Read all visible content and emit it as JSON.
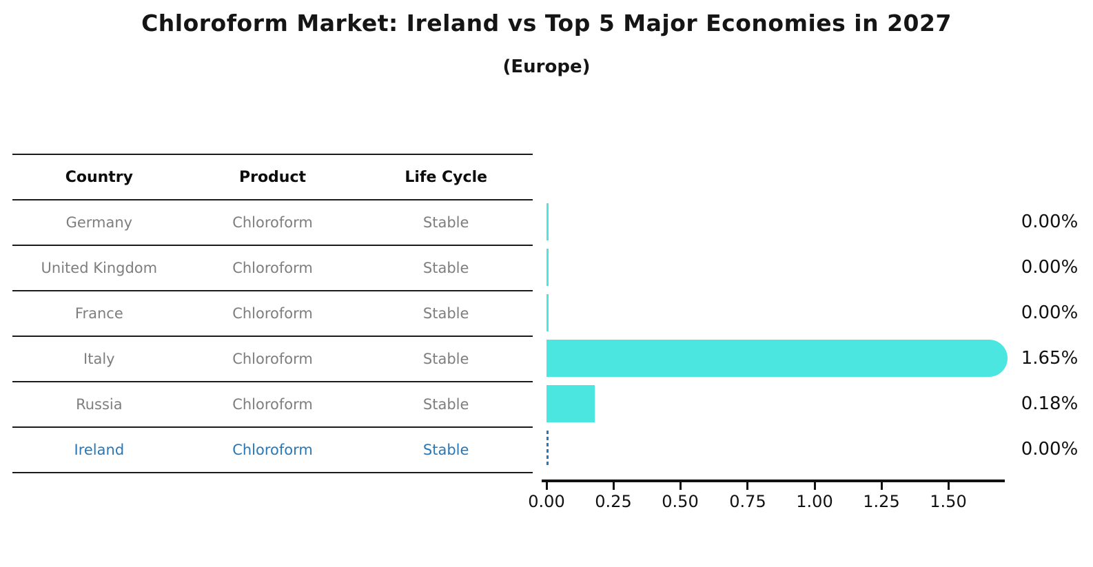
{
  "header": {
    "title": "Chloroform Market: Ireland vs Top 5 Major Economies in 2027",
    "subtitle": "(Europe)"
  },
  "colors": {
    "bar_fill": "#4be6e0",
    "highlight_blue": "#2878b8",
    "table_text_gray": "#7e7e7e",
    "line_black": "#111111"
  },
  "table": {
    "headers": [
      "Country",
      "Product",
      "Life Cycle"
    ],
    "rows": [
      {
        "country": "Germany",
        "product": "Chloroform",
        "life_cycle": "Stable"
      },
      {
        "country": "United Kingdom",
        "product": "Chloroform",
        "life_cycle": "Stable"
      },
      {
        "country": "France",
        "product": "Chloroform",
        "life_cycle": "Stable"
      },
      {
        "country": "Italy",
        "product": "Chloroform",
        "life_cycle": "Stable"
      },
      {
        "country": "Russia",
        "product": "Chloroform",
        "life_cycle": "Stable"
      },
      {
        "country": "Ireland",
        "product": "Chloroform",
        "life_cycle": "Stable"
      }
    ],
    "highlighted_row": "Ireland"
  },
  "chart_data": {
    "type": "bar",
    "orientation": "horizontal",
    "categories": [
      "Germany",
      "United Kingdom",
      "France",
      "Italy",
      "Russia",
      "Ireland"
    ],
    "values": [
      0.0,
      0.0,
      0.0,
      1.65,
      0.18,
      0.0
    ],
    "value_labels": [
      "0.00%",
      "0.00%",
      "0.00%",
      "1.65%",
      "0.18%",
      "0.00%"
    ],
    "x_ticks": [
      0.0,
      0.25,
      0.5,
      0.75,
      1.0,
      1.25,
      1.5
    ],
    "x_tick_labels": [
      "0.00",
      "0.25",
      "0.50",
      "0.75",
      "1.00",
      "1.25",
      "1.50"
    ],
    "xlim": [
      0,
      1.72
    ],
    "bar_color": "#4be6e0",
    "highlight_category": "Ireland",
    "highlight_style": "dashed blue outline",
    "grid": false,
    "legend": false
  }
}
